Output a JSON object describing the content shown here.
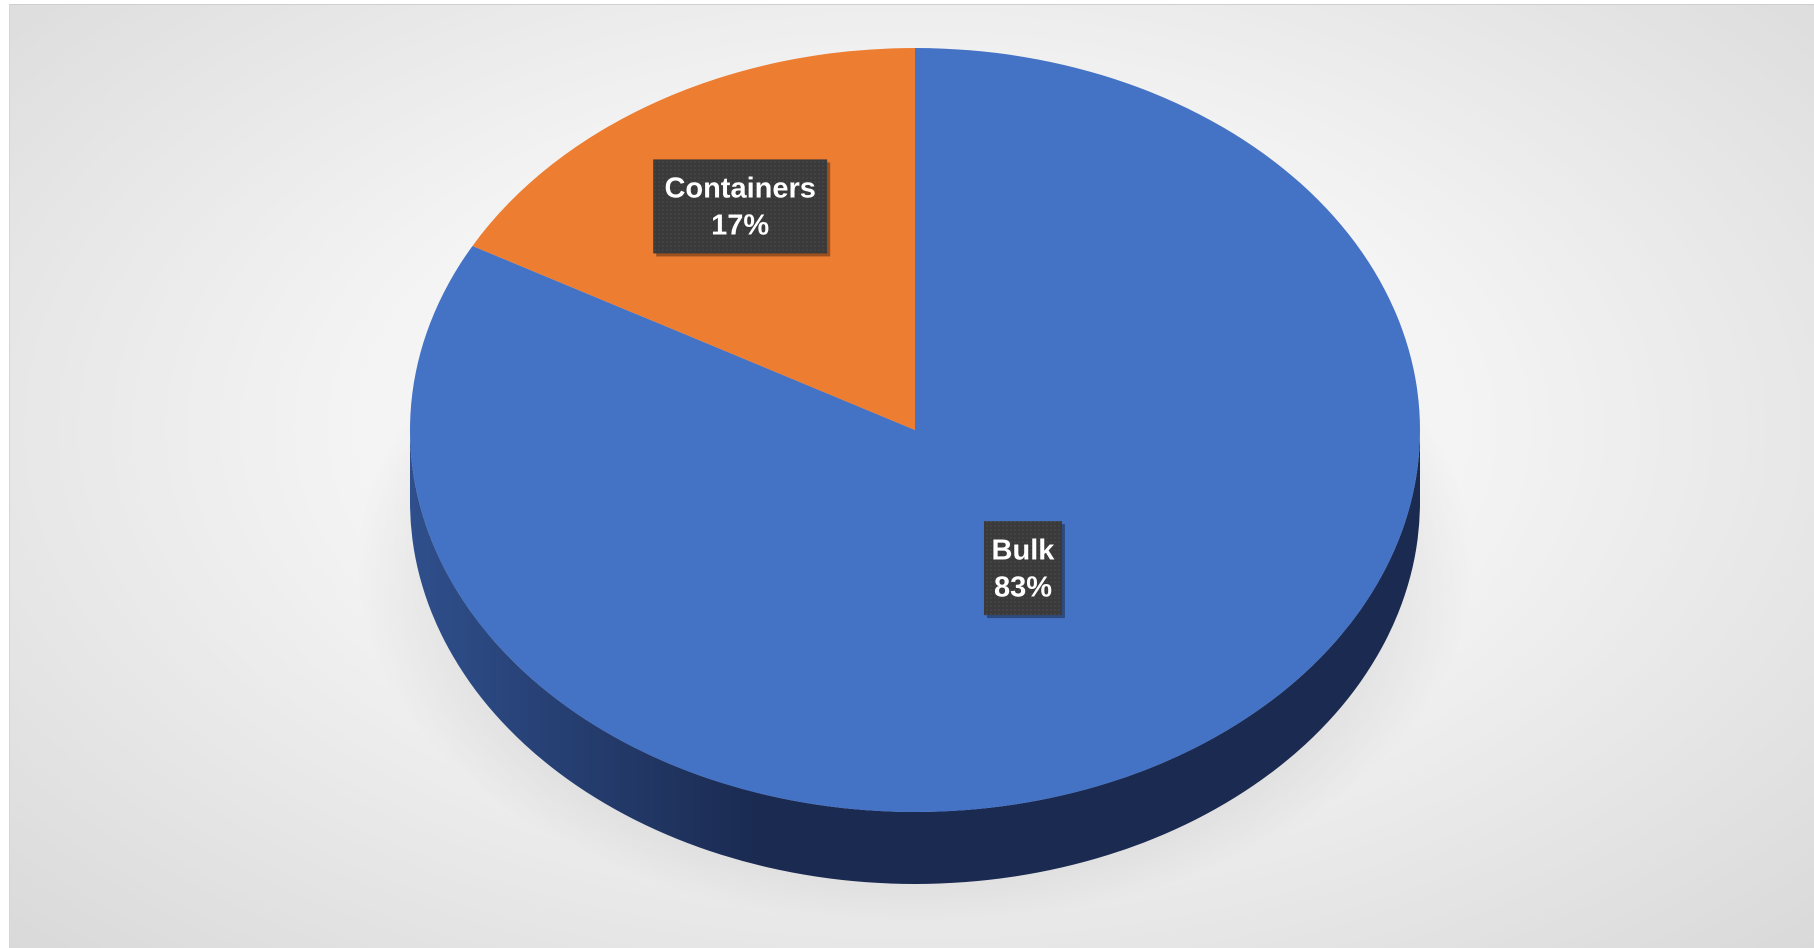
{
  "chart_data": {
    "type": "pie",
    "title": "",
    "slices": [
      {
        "label": "Containers",
        "value": 17,
        "value_label": "17%",
        "color": "#ED7D31"
      },
      {
        "label": "Bulk",
        "value": 83,
        "value_label": "83%",
        "color": "#4472C4"
      }
    ],
    "style": "3d",
    "legend": "none",
    "label_box_color": "#3a3a3a",
    "side_color_dark": "#1a2a50",
    "side_color_light": "#2f4f8c"
  }
}
